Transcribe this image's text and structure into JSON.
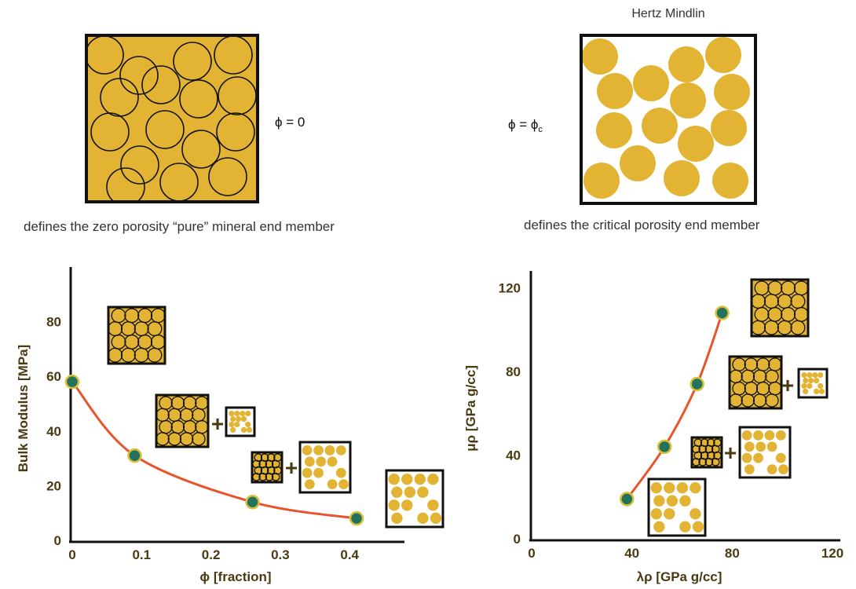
{
  "top_left": {
    "phi_label": "ϕ = 0",
    "caption": "defines the zero porosity “pure” mineral end member"
  },
  "top_right": {
    "title": "Hertz Mindlin",
    "phi_label_main": "ϕ = ϕ",
    "phi_label_sub": "c",
    "caption": "defines the critical porosity end member"
  },
  "colors": {
    "mineral": "#e3b434",
    "grain": "#e3b434",
    "outline": "#111111",
    "curve": "#e8542c",
    "point_fill": "#23735a",
    "point_ring": "#d8c03a",
    "axis_text": "#4a3a12"
  },
  "chart_data": [
    {
      "type": "line",
      "title": "",
      "xlabel": "ϕ [fraction]",
      "ylabel": "Bulk Modulus  [MPa]",
      "xlim": [
        0,
        0.47
      ],
      "ylim": [
        0,
        100
      ],
      "x_ticks": [
        "0",
        "0.1",
        "0.2",
        "0.3",
        "0.4"
      ],
      "y_ticks": [
        "0",
        "20",
        "40",
        "60",
        "80"
      ],
      "x": [
        0,
        0.09,
        0.26,
        0.41
      ],
      "values": [
        58,
        31,
        14,
        8
      ],
      "plus_sign": "+"
    },
    {
      "type": "line",
      "title": "",
      "xlabel": "λρ [GPa g/cc]",
      "ylabel": "μρ [GPa g/cc]",
      "xlim": [
        0,
        120
      ],
      "ylim": [
        0,
        130
      ],
      "x_ticks": [
        "0",
        "40",
        "80",
        "120"
      ],
      "y_ticks": [
        "0",
        "40",
        "80",
        "120"
      ],
      "x": [
        38,
        53,
        66,
        76
      ],
      "values": [
        19,
        44,
        74,
        108
      ],
      "plus_sign": "+"
    }
  ]
}
